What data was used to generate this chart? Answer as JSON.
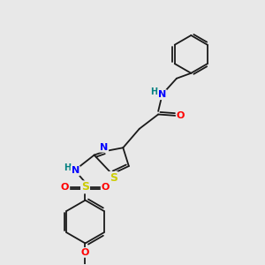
{
  "background_color": "#e8e8e8",
  "bond_color": "#1a1a1a",
  "atom_colors": {
    "N": "#0000ff",
    "O": "#ff0000",
    "S_thiazole": "#cccc00",
    "S_sulfonyl": "#cccc00",
    "H": "#008080",
    "C": "#1a1a1a"
  },
  "font_size": 8.0,
  "bond_width": 1.3,
  "lw": 1.3
}
